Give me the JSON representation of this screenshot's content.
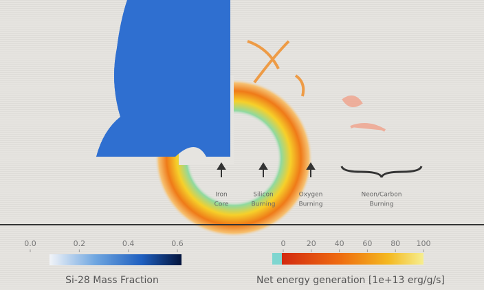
{
  "annotations": [
    {
      "lines": [
        "Iron",
        "Core"
      ]
    },
    {
      "lines": [
        "Silicon",
        "Burning"
      ]
    },
    {
      "lines": [
        "Oxygen",
        "Burning"
      ]
    },
    {
      "lines": [
        "Neon/Carbon",
        "Burning"
      ]
    }
  ],
  "colorbars": [
    {
      "label": "Si-28 Mass Fraction",
      "lim": [
        0,
        0.6
      ],
      "ticks": [
        {
          "value": 0,
          "label": "0.0"
        },
        0.2,
        0.4,
        0.6
      ]
    },
    {
      "label": "Net energy generation [1e+13 erg/g/s]",
      "lim": [
        0,
        100
      ],
      "ticks": [
        0,
        20,
        40,
        60,
        80,
        100
      ]
    }
  ]
}
